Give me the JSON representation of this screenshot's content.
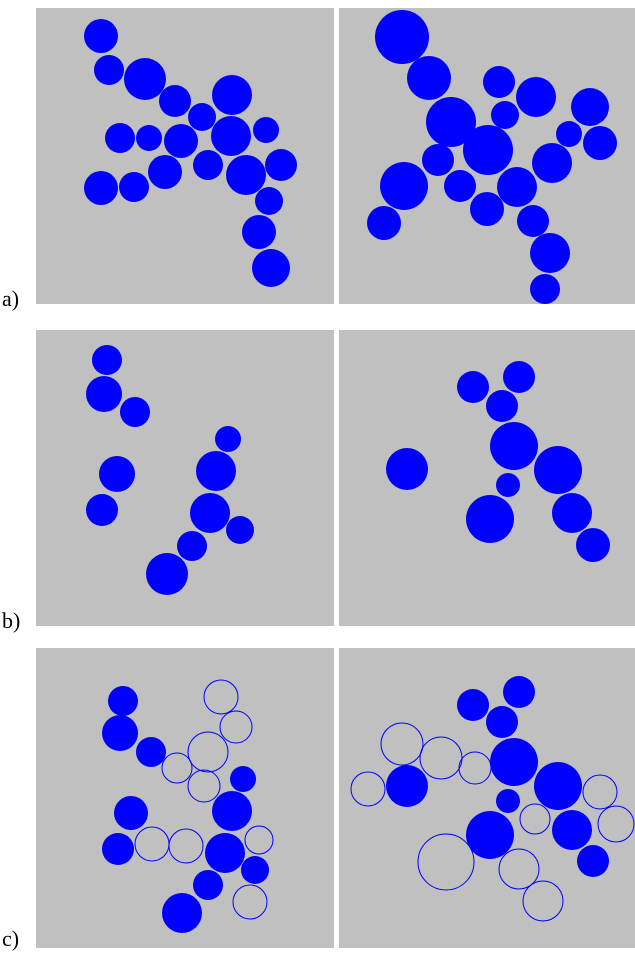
{
  "labels": {
    "a": "a)",
    "b": "b)",
    "c": "c)"
  },
  "colors": {
    "panel_bg": "#c0c0c0",
    "disk_fill": "#0000ff",
    "outline_stroke": "#0000ff"
  },
  "panels": [
    {
      "name": "a-left",
      "filled": [
        [
          101,
          36,
          17
        ],
        [
          109,
          70,
          15
        ],
        [
          145,
          79,
          21
        ],
        [
          175,
          101,
          16
        ],
        [
          202,
          117,
          14
        ],
        [
          232,
          95,
          20
        ],
        [
          266,
          130,
          13
        ],
        [
          120,
          138,
          15
        ],
        [
          149,
          138,
          13
        ],
        [
          181,
          141,
          17
        ],
        [
          208,
          165,
          15
        ],
        [
          231,
          136,
          20
        ],
        [
          281,
          165,
          16
        ],
        [
          246,
          175,
          20
        ],
        [
          101,
          188,
          17
        ],
        [
          134,
          187,
          15
        ],
        [
          165,
          172,
          17
        ],
        [
          269,
          201,
          14
        ],
        [
          259,
          232,
          17
        ],
        [
          271,
          268,
          19
        ]
      ],
      "outline": [
        [
          99,
          34,
          4
        ]
      ]
    },
    {
      "name": "a-right",
      "filled": [
        [
          402,
          37,
          27
        ],
        [
          429,
          78,
          22
        ],
        [
          499,
          82,
          16
        ],
        [
          536,
          97,
          20
        ],
        [
          590,
          107,
          19
        ],
        [
          451,
          122,
          25
        ],
        [
          505,
          115,
          14
        ],
        [
          569,
          134,
          13
        ],
        [
          600,
          143,
          17
        ],
        [
          438,
          160,
          16
        ],
        [
          488,
          150,
          25
        ],
        [
          552,
          163,
          20
        ],
        [
          404,
          186,
          24
        ],
        [
          460,
          186,
          16
        ],
        [
          517,
          187,
          20
        ],
        [
          487,
          209,
          17
        ],
        [
          533,
          221,
          16
        ],
        [
          384,
          223,
          17
        ],
        [
          550,
          253,
          20
        ],
        [
          545,
          289,
          15
        ]
      ],
      "outline": []
    },
    {
      "name": "b-left",
      "filled": [
        [
          107,
          360,
          15
        ],
        [
          104,
          394,
          18
        ],
        [
          135,
          412,
          15
        ],
        [
          228,
          439,
          13
        ],
        [
          216,
          471,
          20
        ],
        [
          117,
          474,
          18
        ],
        [
          102,
          510,
          16
        ],
        [
          210,
          513,
          20
        ],
        [
          240,
          530,
          14
        ],
        [
          192,
          546,
          15
        ],
        [
          167,
          574,
          21
        ]
      ],
      "outline": []
    },
    {
      "name": "b-right",
      "filled": [
        [
          473,
          387,
          16
        ],
        [
          519,
          377,
          16
        ],
        [
          502,
          406,
          16
        ],
        [
          514,
          446,
          24
        ],
        [
          407,
          469,
          21
        ],
        [
          558,
          470,
          24
        ],
        [
          508,
          485,
          12
        ],
        [
          490,
          519,
          24
        ],
        [
          572,
          513,
          20
        ],
        [
          593,
          545,
          17
        ]
      ],
      "outline": []
    },
    {
      "name": "c-left",
      "filled": [
        [
          123,
          701,
          15
        ],
        [
          120,
          733,
          18
        ],
        [
          151,
          752,
          15
        ],
        [
          243,
          779,
          13
        ],
        [
          232,
          811,
          20
        ],
        [
          131,
          813,
          17
        ],
        [
          118,
          849,
          16
        ],
        [
          225,
          853,
          20
        ],
        [
          255,
          870,
          14
        ],
        [
          208,
          885,
          15
        ],
        [
          182,
          913,
          20
        ]
      ],
      "outline": [
        [
          221,
          697,
          17
        ],
        [
          236,
          727,
          16
        ],
        [
          208,
          752,
          20
        ],
        [
          177,
          768,
          15
        ],
        [
          204,
          786,
          16
        ],
        [
          259,
          840,
          14
        ],
        [
          152,
          844,
          17
        ],
        [
          186,
          846,
          17
        ],
        [
          250,
          902,
          17
        ],
        [
          123,
          699,
          4
        ]
      ]
    },
    {
      "name": "c-right",
      "filled": [
        [
          473,
          705,
          16
        ],
        [
          519,
          692,
          16
        ],
        [
          502,
          722,
          16
        ],
        [
          514,
          762,
          24
        ],
        [
          407,
          786,
          21
        ],
        [
          558,
          786,
          24
        ],
        [
          508,
          801,
          12
        ],
        [
          490,
          835,
          24
        ],
        [
          572,
          830,
          20
        ],
        [
          593,
          861,
          16
        ]
      ],
      "outline": [
        [
          402,
          744,
          21
        ],
        [
          441,
          758,
          21
        ],
        [
          475,
          768,
          16
        ],
        [
          368,
          789,
          17
        ],
        [
          600,
          792,
          17
        ],
        [
          535,
          819,
          15
        ],
        [
          616,
          824,
          18
        ],
        [
          446,
          862,
          28
        ],
        [
          519,
          869,
          20
        ],
        [
          543,
          901,
          20
        ]
      ]
    }
  ]
}
